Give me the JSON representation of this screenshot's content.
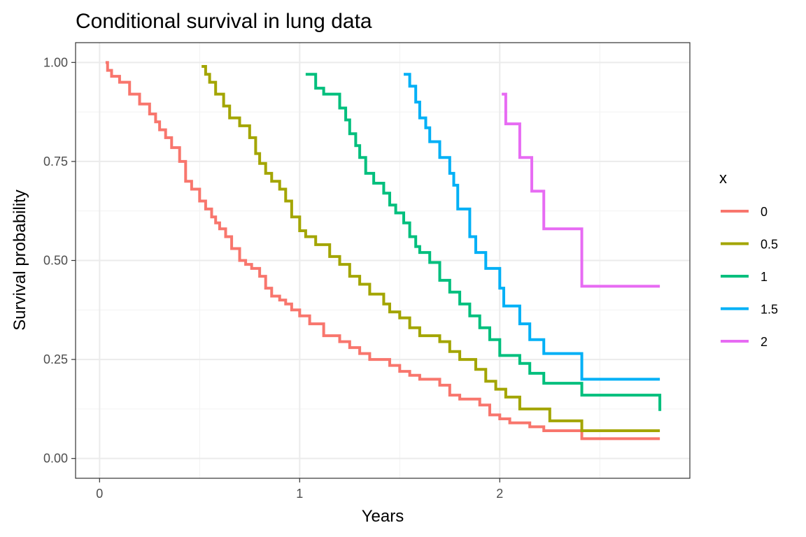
{
  "chart_data": {
    "type": "line",
    "step": true,
    "title": "Conditional survival in lung data",
    "xlabel": "Years",
    "ylabel": "Survival probability",
    "xlim": [
      -0.12,
      2.95
    ],
    "ylim": [
      -0.05,
      1.05
    ],
    "x_ticks": [
      0,
      1,
      2
    ],
    "x_tick_labels": [
      "0",
      "1",
      "2"
    ],
    "y_ticks": [
      0,
      0.25,
      0.5,
      0.75,
      1.0
    ],
    "y_tick_labels": [
      "0.00",
      "0.25",
      "0.50",
      "0.75",
      "1.00"
    ],
    "grid": true,
    "legend": {
      "title": "x",
      "position": "right"
    },
    "series": [
      {
        "name": "0",
        "color": "#F8766D",
        "x": [
          0.03,
          0.04,
          0.06,
          0.1,
          0.15,
          0.2,
          0.25,
          0.28,
          0.3,
          0.33,
          0.36,
          0.4,
          0.43,
          0.46,
          0.5,
          0.53,
          0.56,
          0.58,
          0.6,
          0.63,
          0.66,
          0.7,
          0.73,
          0.76,
          0.8,
          0.83,
          0.86,
          0.9,
          0.93,
          0.96,
          1.0,
          1.05,
          1.12,
          1.2,
          1.25,
          1.3,
          1.35,
          1.45,
          1.5,
          1.55,
          1.6,
          1.7,
          1.75,
          1.8,
          1.9,
          1.95,
          2.0,
          2.05,
          2.15,
          2.22,
          2.41,
          2.8
        ],
        "y": [
          1.0,
          0.98,
          0.965,
          0.95,
          0.92,
          0.895,
          0.87,
          0.85,
          0.83,
          0.81,
          0.785,
          0.75,
          0.7,
          0.68,
          0.65,
          0.63,
          0.61,
          0.595,
          0.58,
          0.56,
          0.53,
          0.5,
          0.49,
          0.48,
          0.46,
          0.43,
          0.41,
          0.4,
          0.39,
          0.375,
          0.36,
          0.34,
          0.31,
          0.295,
          0.28,
          0.265,
          0.25,
          0.235,
          0.22,
          0.21,
          0.2,
          0.185,
          0.16,
          0.15,
          0.135,
          0.11,
          0.1,
          0.09,
          0.08,
          0.07,
          0.05,
          0.05
        ]
      },
      {
        "name": "0.5",
        "color": "#A3A500",
        "x": [
          0.51,
          0.53,
          0.55,
          0.58,
          0.62,
          0.65,
          0.7,
          0.75,
          0.78,
          0.8,
          0.83,
          0.86,
          0.9,
          0.93,
          0.96,
          1.0,
          1.03,
          1.08,
          1.15,
          1.2,
          1.25,
          1.3,
          1.35,
          1.42,
          1.45,
          1.5,
          1.55,
          1.6,
          1.7,
          1.75,
          1.8,
          1.88,
          1.93,
          1.98,
          2.03,
          2.1,
          2.25,
          2.41,
          2.8
        ],
        "y": [
          0.99,
          0.97,
          0.95,
          0.92,
          0.89,
          0.86,
          0.84,
          0.81,
          0.77,
          0.745,
          0.72,
          0.7,
          0.68,
          0.65,
          0.61,
          0.575,
          0.56,
          0.54,
          0.51,
          0.49,
          0.46,
          0.44,
          0.415,
          0.39,
          0.37,
          0.355,
          0.33,
          0.31,
          0.295,
          0.27,
          0.25,
          0.225,
          0.195,
          0.175,
          0.155,
          0.125,
          0.095,
          0.07,
          0.07
        ]
      },
      {
        "name": "1",
        "color": "#00BF7D",
        "x": [
          1.03,
          1.08,
          1.12,
          1.2,
          1.23,
          1.25,
          1.28,
          1.3,
          1.33,
          1.37,
          1.42,
          1.45,
          1.48,
          1.52,
          1.55,
          1.58,
          1.6,
          1.65,
          1.7,
          1.75,
          1.8,
          1.85,
          1.9,
          1.95,
          2.0,
          2.1,
          2.15,
          2.22,
          2.41,
          2.8
        ],
        "y": [
          0.97,
          0.935,
          0.92,
          0.885,
          0.855,
          0.82,
          0.79,
          0.76,
          0.72,
          0.695,
          0.67,
          0.64,
          0.62,
          0.595,
          0.56,
          0.535,
          0.52,
          0.495,
          0.45,
          0.42,
          0.39,
          0.36,
          0.33,
          0.3,
          0.26,
          0.24,
          0.215,
          0.19,
          0.16,
          0.12
        ]
      },
      {
        "name": "1.5",
        "color": "#00B0F6",
        "x": [
          1.52,
          1.55,
          1.58,
          1.6,
          1.63,
          1.65,
          1.7,
          1.75,
          1.77,
          1.79,
          1.85,
          1.88,
          1.93,
          2.0,
          2.02,
          2.1,
          2.15,
          2.22,
          2.41,
          2.8
        ],
        "y": [
          0.97,
          0.94,
          0.9,
          0.86,
          0.835,
          0.8,
          0.76,
          0.72,
          0.69,
          0.63,
          0.56,
          0.52,
          0.48,
          0.43,
          0.385,
          0.34,
          0.3,
          0.265,
          0.2,
          0.2
        ]
      },
      {
        "name": "2",
        "color": "#E76BF3",
        "x": [
          2.01,
          2.03,
          2.1,
          2.16,
          2.22,
          2.41,
          2.8
        ],
        "y": [
          0.92,
          0.845,
          0.76,
          0.675,
          0.58,
          0.435,
          0.435
        ]
      }
    ]
  }
}
